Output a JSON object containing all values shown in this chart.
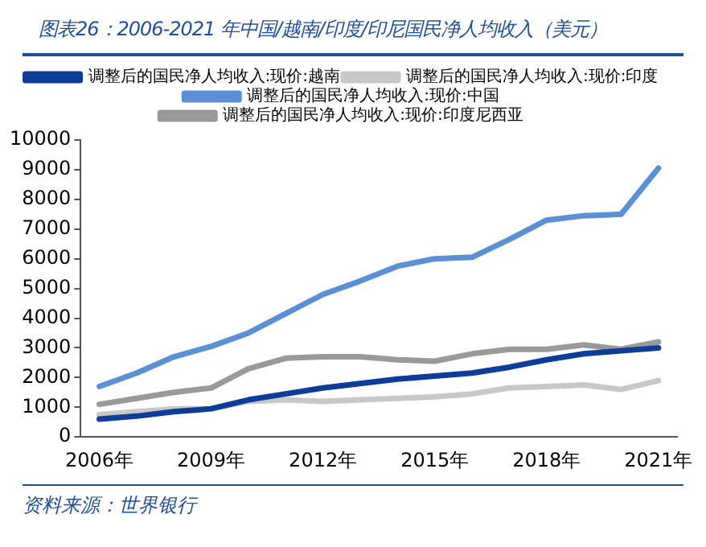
{
  "chart_data": {
    "type": "line",
    "title": "图表26：2006-2021 年中国/越南/印度/印尼国民净人均收入（美元）",
    "categories": [
      "2006年",
      null,
      null,
      "2009年",
      null,
      null,
      "2012年",
      null,
      null,
      "2015年",
      null,
      null,
      "2018年",
      null,
      null,
      "2021年"
    ],
    "series": [
      {
        "name": "调整后的国民净人均收入:现价:越南",
        "color": "#0d3c99",
        "values": [
          600,
          700,
          850,
          950,
          1250,
          1450,
          1650,
          1800,
          1950,
          2050,
          2150,
          2350,
          2600,
          2800,
          2900,
          3000
        ]
      },
      {
        "name": "调整后的国民净人均收入:现价:印度",
        "color": "#c8c8c8",
        "values": [
          750,
          850,
          950,
          950,
          1200,
          1250,
          1200,
          1250,
          1300,
          1350,
          1450,
          1650,
          1700,
          1750,
          1600,
          1900
        ]
      },
      {
        "name": "调整后的国民净人均收入:现价:中国",
        "color": "#5b8fd6",
        "values": [
          1700,
          2150,
          2700,
          3050,
          3500,
          4150,
          4800,
          5250,
          5750,
          6000,
          6050,
          6650,
          7300,
          7450,
          7500,
          9050
        ]
      },
      {
        "name": "调整后的国民净人均收入:现价:印度尼西亚",
        "color": "#999999",
        "values": [
          1100,
          1300,
          1500,
          1650,
          2300,
          2650,
          2700,
          2700,
          2600,
          2550,
          2800,
          2950,
          2950,
          3100,
          2950,
          3200
        ]
      }
    ],
    "ylim": [
      0,
      10000
    ],
    "yticks": [
      0,
      1000,
      2000,
      3000,
      4000,
      5000,
      6000,
      7000,
      8000,
      9000,
      10000
    ],
    "grid": false,
    "legend": "top",
    "marker": "none",
    "line_style": "solid",
    "annotations": [
      "资料来源：世界银行"
    ]
  }
}
